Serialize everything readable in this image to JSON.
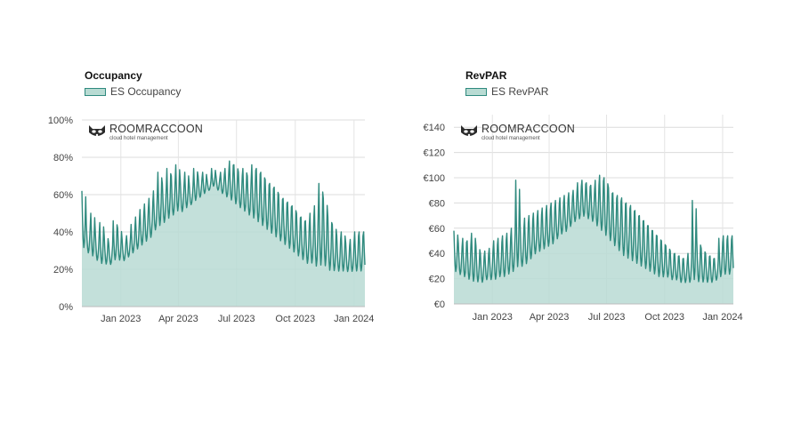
{
  "brand": {
    "name": "ROOMRACCOON",
    "tagline": "cloud hotel management"
  },
  "chart_data": [
    {
      "type": "area",
      "title": "Occupancy",
      "series_name": "ES Occupancy",
      "ylim": [
        0,
        100
      ],
      "y_ticks": [
        "0%",
        "20%",
        "40%",
        "60%",
        "80%",
        "100%"
      ],
      "x_ticks": [
        "Jan 2023",
        "Apr 2023",
        "Jul 2023",
        "Oct 2023",
        "Jan 2024"
      ],
      "x_start": "2022-11-01",
      "x_end": "2024-01-18",
      "grid": true,
      "color": "#2f8a7e",
      "fill": "#b8dbd3",
      "weekly": [
        62,
        44,
        50,
        40,
        45,
        38,
        34,
        46,
        42,
        36,
        38,
        44,
        48,
        52,
        55,
        58,
        62,
        72,
        66,
        74,
        70,
        76,
        68,
        72,
        66,
        74,
        70,
        72,
        68,
        74,
        70,
        72,
        74,
        78,
        76,
        72,
        74,
        70,
        76,
        74,
        72,
        68,
        66,
        64,
        60,
        58,
        56,
        54,
        50,
        48,
        46,
        50,
        54,
        66,
        58,
        48,
        44,
        38,
        40,
        34,
        36,
        40
      ],
      "base_min": [
        30,
        28,
        26,
        24,
        22,
        22,
        22,
        24,
        24,
        24,
        26,
        28,
        30,
        32,
        34,
        36,
        40,
        42,
        44,
        46,
        48,
        50,
        50,
        52,
        54,
        56,
        58,
        60,
        62,
        64,
        62,
        60,
        58,
        56,
        54,
        52,
        50,
        48,
        46,
        44,
        42,
        40,
        38,
        36,
        34,
        32,
        30,
        28,
        26,
        24,
        22,
        22,
        20,
        20,
        20,
        18,
        18,
        18,
        18,
        18,
        18,
        18
      ]
    },
    {
      "type": "area",
      "title": "RevPAR",
      "series_name": "ES RevPAR",
      "ylim": [
        0,
        150
      ],
      "y_ticks": [
        "€0",
        "€20",
        "€40",
        "€60",
        "€80",
        "€100",
        "€120",
        "€140"
      ],
      "x_ticks": [
        "Jan 2023",
        "Apr 2023",
        "Jul 2023",
        "Oct 2023",
        "Jan 2024"
      ],
      "x_start": "2022-11-01",
      "x_end": "2024-01-18",
      "grid": true,
      "color": "#2f8a7e",
      "fill": "#b8dbd3",
      "weekly": [
        58,
        48,
        52,
        50,
        56,
        46,
        40,
        42,
        44,
        50,
        52,
        54,
        56,
        60,
        98,
        64,
        68,
        70,
        72,
        74,
        76,
        78,
        80,
        82,
        84,
        86,
        88,
        90,
        96,
        98,
        96,
        94,
        98,
        102,
        100,
        92,
        88,
        86,
        84,
        80,
        78,
        74,
        70,
        66,
        62,
        58,
        54,
        50,
        46,
        42,
        40,
        38,
        36,
        40,
        82,
        50,
        44,
        40,
        38,
        36,
        52,
        54
      ],
      "base_min": [
        24,
        22,
        20,
        18,
        16,
        16,
        16,
        18,
        18,
        18,
        20,
        20,
        22,
        24,
        26,
        28,
        30,
        34,
        38,
        40,
        42,
        44,
        46,
        50,
        54,
        56,
        60,
        64,
        66,
        68,
        66,
        64,
        60,
        56,
        52,
        48,
        44,
        40,
        36,
        34,
        32,
        30,
        28,
        26,
        24,
        22,
        20,
        20,
        20,
        18,
        18,
        16,
        16,
        16,
        16,
        16,
        16,
        16,
        16,
        18,
        20,
        22
      ]
    }
  ]
}
